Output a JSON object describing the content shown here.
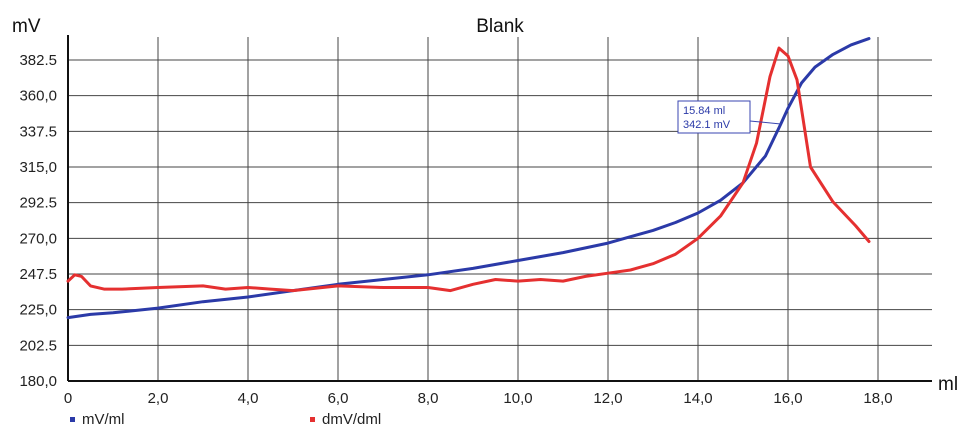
{
  "chart_data": {
    "type": "line",
    "title": "Blank",
    "ylabel": "mV",
    "xlabel": "ml",
    "xlim": [
      0,
      19.2
    ],
    "ylim": [
      180,
      397
    ],
    "grid": true,
    "legend": "bottom-left",
    "x_ticks": [
      {
        "value": 0,
        "label": "0"
      },
      {
        "value": 2,
        "label": "2,0"
      },
      {
        "value": 4,
        "label": "4,0"
      },
      {
        "value": 6,
        "label": "6,0"
      },
      {
        "value": 8,
        "label": "8,0"
      },
      {
        "value": 10,
        "label": "10,0"
      },
      {
        "value": 12,
        "label": "12,0"
      },
      {
        "value": 14,
        "label": "14,0"
      },
      {
        "value": 16,
        "label": "16,0"
      },
      {
        "value": 18,
        "label": "18,0"
      }
    ],
    "y_ticks": [
      {
        "value": 180,
        "label": "180,0"
      },
      {
        "value": 202.5,
        "label": "202.5"
      },
      {
        "value": 225,
        "label": "225,0"
      },
      {
        "value": 247.5,
        "label": "247.5"
      },
      {
        "value": 270,
        "label": "270,0"
      },
      {
        "value": 292.5,
        "label": "292.5"
      },
      {
        "value": 315,
        "label": "315,0"
      },
      {
        "value": 337.5,
        "label": "337.5"
      },
      {
        "value": 360,
        "label": "360,0"
      },
      {
        "value": 382.5,
        "label": "382.5"
      }
    ],
    "series": [
      {
        "name": "mV/ml",
        "color": "#2b3aa8",
        "x": [
          0,
          0.5,
          1,
          2,
          3,
          4,
          5,
          6,
          7,
          8,
          9,
          10,
          11,
          12,
          12.5,
          13,
          13.5,
          14,
          14.5,
          15,
          15.5,
          15.84,
          16,
          16.3,
          16.6,
          17,
          17.4,
          17.8
        ],
        "y": [
          220,
          222,
          223,
          226,
          230,
          233,
          237,
          241,
          244,
          247,
          251,
          256,
          261,
          267,
          271,
          275,
          280,
          286,
          294,
          305,
          322,
          342.1,
          352,
          368,
          378,
          386,
          392,
          396
        ]
      },
      {
        "name": "dmV/dml",
        "color": "#e53030",
        "x": [
          0,
          0.15,
          0.3,
          0.5,
          0.8,
          1.2,
          2,
          3,
          3.5,
          4,
          4.5,
          5,
          6,
          7,
          8,
          8.5,
          9,
          9.5,
          10,
          10.5,
          11,
          11.5,
          12,
          12.5,
          13,
          13.5,
          14,
          14.5,
          15,
          15.3,
          15.6,
          15.8,
          16,
          16.2,
          16.5,
          17,
          17.5,
          17.8
        ],
        "y": [
          243,
          247,
          246,
          240,
          238,
          238,
          239,
          240,
          238,
          239,
          238,
          237,
          240,
          239,
          239,
          237,
          241,
          244,
          243,
          244,
          243,
          246,
          248,
          250,
          254,
          260,
          270,
          284,
          305,
          330,
          372,
          390,
          385,
          370,
          315,
          293,
          278,
          268
        ]
      }
    ],
    "annotations": [
      {
        "x": 15.84,
        "y": 342.1,
        "lines": [
          "15.84 ml",
          "342.1 mV"
        ]
      }
    ]
  }
}
